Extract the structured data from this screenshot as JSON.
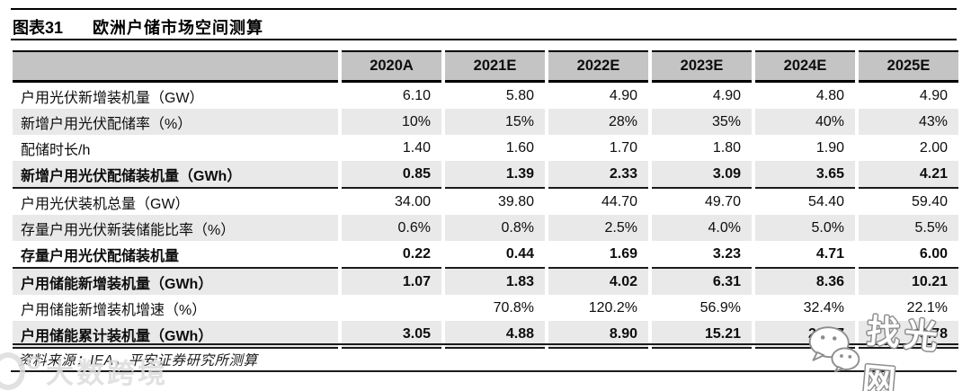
{
  "figure": {
    "label": "图表31",
    "title": "欧洲户储市场空间测算"
  },
  "chart_data": {
    "type": "table",
    "title": "欧洲户储市场空间测算",
    "columns": [
      "2020A",
      "2021E",
      "2022E",
      "2023E",
      "2024E",
      "2025E"
    ],
    "rows": [
      {
        "label": "户用光伏新增装机量（GW）",
        "values": [
          "6.10",
          "5.80",
          "4.90",
          "4.90",
          "4.80",
          "4.90"
        ],
        "bold": false,
        "shaded": false,
        "section_end": false
      },
      {
        "label": "新增户用光伏配储率（%）",
        "values": [
          "10%",
          "15%",
          "28%",
          "35%",
          "40%",
          "43%"
        ],
        "bold": false,
        "shaded": true,
        "section_end": false
      },
      {
        "label": "配储时长/h",
        "values": [
          "1.40",
          "1.60",
          "1.70",
          "1.80",
          "1.90",
          "2.00"
        ],
        "bold": false,
        "shaded": false,
        "section_end": false
      },
      {
        "label": "新增户用光伏配储装机量（GWh）",
        "values": [
          "0.85",
          "1.39",
          "2.33",
          "3.09",
          "3.65",
          "4.21"
        ],
        "bold": true,
        "shaded": true,
        "section_end": true
      },
      {
        "label": "户用光伏装机总量（GW）",
        "values": [
          "34.00",
          "39.80",
          "44.70",
          "49.70",
          "54.40",
          "59.40"
        ],
        "bold": false,
        "shaded": false,
        "section_end": false
      },
      {
        "label": "存量户用光伏新装储能比率（%）",
        "values": [
          "0.6%",
          "0.8%",
          "2.5%",
          "4.0%",
          "5.0%",
          "5.5%"
        ],
        "bold": false,
        "shaded": true,
        "section_end": false
      },
      {
        "label": "存量户用光伏配储装机量",
        "values": [
          "0.22",
          "0.44",
          "1.69",
          "3.23",
          "4.71",
          "6.00"
        ],
        "bold": true,
        "shaded": false,
        "section_end": true
      },
      {
        "label": "户用储能新增装机量（GWh）",
        "values": [
          "1.07",
          "1.83",
          "4.02",
          "6.31",
          "8.36",
          "10.21"
        ],
        "bold": true,
        "shaded": true,
        "section_end": false
      },
      {
        "label": "户用储能新增装机增速（%）",
        "values": [
          "",
          "70.8%",
          "120.2%",
          "56.9%",
          "32.4%",
          "22.1%"
        ],
        "bold": false,
        "shaded": false,
        "section_end": false
      },
      {
        "label": "户用储能累计装机量（GWh）",
        "values": [
          "3.05",
          "4.88",
          "8.90",
          "15.21",
          "23.57",
          "33.78"
        ],
        "bold": true,
        "shaded": true,
        "section_end": true
      }
    ]
  },
  "source_note": "资料来源：IEA，平安证券研究所测算",
  "watermarks": {
    "left_text": "大数跨境",
    "right_text": "找光网"
  },
  "colors": {
    "header_bg": "#c4c4c4",
    "shaded_row_bg": "#e9e9e9",
    "rule": "#000000",
    "text": "#111111",
    "watermark_gray": "#dcdcdc"
  }
}
